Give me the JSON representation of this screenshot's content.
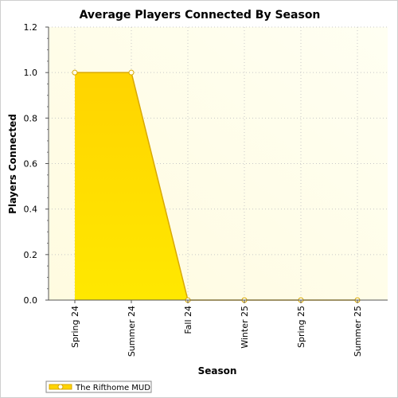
{
  "chart_data": {
    "type": "area",
    "title": "Average Players Connected By Season",
    "xlabel": "Season",
    "ylabel": "Players Connected",
    "categories": [
      "Spring 24",
      "Summer 24",
      "Fall 24",
      "Winter 25",
      "Spring 25",
      "Summer 25"
    ],
    "y_ticks": [
      "0.0",
      "0.2",
      "0.4",
      "0.6",
      "0.8",
      "1.0",
      "1.2"
    ],
    "ylim": [
      0,
      1.2
    ],
    "grid": true,
    "legend_position": "bottom-left",
    "series": [
      {
        "name": "The Rifthome MUD",
        "values": [
          1.0,
          1.0,
          0.0,
          0.0,
          0.0,
          0.0
        ]
      }
    ],
    "colors": {
      "plot_bg_start": "#fffbe0",
      "plot_bg_end": "#fffff2",
      "fill_top": "#ffd400",
      "fill_bottom": "#ffe800",
      "line": "#d9a800",
      "marker_fill": "#ffffee",
      "grid": "#c8c8c8"
    }
  }
}
